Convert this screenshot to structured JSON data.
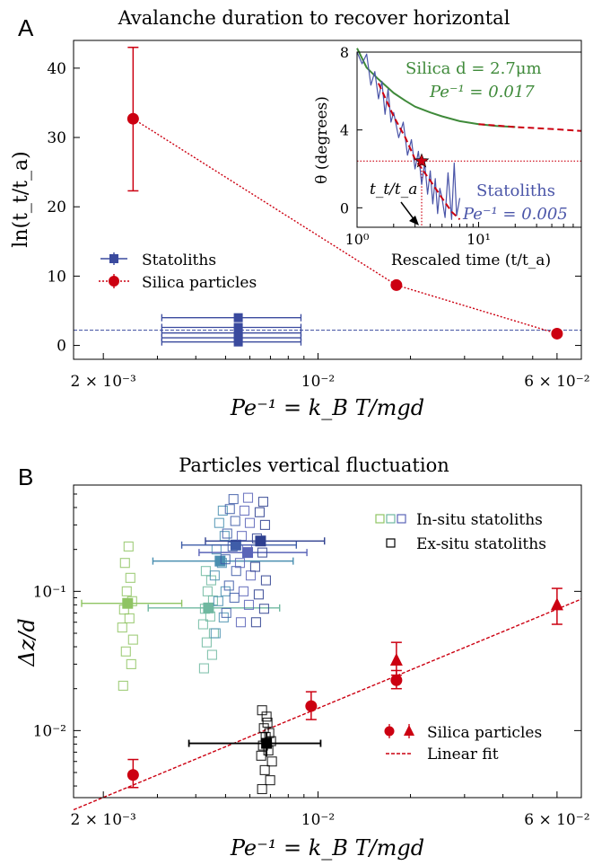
{
  "chart_data": [
    {
      "panel_label": "A",
      "type": "scatter",
      "title": "Avalanche duration to recover horizontal",
      "xlabel": "Pe⁻¹ = k_B T/mgd",
      "ylabel": "ln(t_t/t_a)",
      "x_scale": "log",
      "xlim": [
        0.0016,
        0.072
      ],
      "ylim": [
        -2,
        44
      ],
      "x_tick_labels": [
        "2 × 10⁻³",
        "10⁻²",
        "6 × 10⁻²"
      ],
      "x_ticks": [
        0.002,
        0.01,
        0.06
      ],
      "y_ticks": [
        0,
        10,
        20,
        30,
        40
      ],
      "legend": {
        "placement": "center-left",
        "entries": [
          "Statoliths",
          "Silica particles"
        ]
      },
      "series": [
        {
          "name": "Silica particles",
          "color": "#cc0011",
          "style": "dotted line with circle markers",
          "x": [
            0.0025,
            0.018,
            0.06
          ],
          "y": [
            32.7,
            8.7,
            1.7
          ],
          "y_err_low": [
            22.3,
            null,
            null
          ],
          "y_err_high": [
            43.0,
            null,
            null
          ]
        },
        {
          "name": "Statoliths",
          "color": "#3a4a9e",
          "style": "square markers with horizontal error bars",
          "x": [
            0.0055,
            0.0055,
            0.0055,
            0.0055,
            0.0055
          ],
          "y": [
            4.0,
            2.6,
            1.8,
            1.1,
            0.5
          ],
          "x_err_low": [
            0.0031,
            0.0031,
            0.0031,
            0.0031,
            0.0031
          ],
          "x_err_high": [
            0.0088,
            0.0088,
            0.0088,
            0.0088,
            0.0088
          ]
        },
        {
          "name": "reference",
          "color": "#3a4a9e",
          "style": "dashed horizontal line",
          "y": 2.2
        }
      ]
    },
    {
      "panel_label": "inset",
      "type": "line",
      "xlabel": "Rescaled time (t/t_a)",
      "ylabel": "θ (degrees)",
      "x_scale": "log",
      "xlim": [
        1,
        70
      ],
      "ylim": [
        -1,
        8
      ],
      "x_tick_labels": [
        "10⁰",
        "10¹"
      ],
      "y_ticks": [
        0,
        4,
        8
      ],
      "annotations": [
        {
          "text": "Silica  d = 2.7μm",
          "color": "#3f8a3a"
        },
        {
          "text": "Pe⁻¹ = 0.017",
          "color": "#3f8a3a"
        },
        {
          "text": "Statoliths",
          "color": "#4a55a8"
        },
        {
          "text": "Pe⁻¹ = 0.005",
          "color": "#4a55a8"
        },
        {
          "text": "t_t/t_a",
          "color": "#000000"
        }
      ],
      "series": [
        {
          "name": "Silica",
          "color": "#3f8a3a",
          "x": [
            1.0,
            1.2,
            1.5,
            2.0,
            2.5,
            3.0,
            4.0,
            5.0,
            7.0,
            10.0,
            14.0,
            20.0
          ],
          "y": [
            8.2,
            7.2,
            6.6,
            5.9,
            5.5,
            5.2,
            4.9,
            4.7,
            4.45,
            4.3,
            4.2,
            4.15
          ]
        },
        {
          "name": "Silica fit",
          "color": "#cc0011",
          "style": "dashed",
          "x": [
            10.0,
            20.0,
            40.0,
            70.0
          ],
          "y": [
            4.3,
            4.15,
            4.05,
            3.95
          ]
        },
        {
          "name": "Statoliths",
          "color": "#4a55a8",
          "x": [
            1.0,
            1.1,
            1.2,
            1.3,
            1.4,
            1.5,
            1.6,
            1.7,
            1.8,
            1.9,
            2.0,
            2.2,
            2.4,
            2.6,
            2.8,
            3.0,
            3.2,
            3.4,
            3.6,
            3.8,
            4.0,
            4.2,
            4.4,
            4.6,
            4.8,
            5.0,
            5.3,
            5.6,
            6.0,
            6.3,
            6.6,
            7.0
          ],
          "y": [
            8.0,
            7.4,
            7.9,
            6.3,
            7.0,
            5.6,
            6.5,
            4.8,
            6.1,
            4.4,
            4.9,
            3.6,
            4.4,
            2.7,
            3.5,
            2.0,
            2.9,
            1.2,
            2.3,
            0.7,
            1.9,
            0.2,
            1.5,
            -0.3,
            1.0,
            0.5,
            -0.5,
            1.8,
            -0.6,
            2.3,
            -0.4,
            0.5
          ]
        },
        {
          "name": "Statoliths fit",
          "color": "#cc0011",
          "style": "dashed",
          "x": [
            1.5,
            2.0,
            2.5,
            3.0,
            4.0,
            5.0,
            6.0,
            7.0
          ],
          "y": [
            6.4,
            4.7,
            3.6,
            2.5,
            1.4,
            0.5,
            -0.2,
            -0.6
          ]
        },
        {
          "name": "threshold",
          "color": "#cc0011",
          "style": "dotted horizontal line",
          "y": 2.4
        },
        {
          "name": "t_t/t_a marker",
          "color": "#cc0011",
          "style": "star + dotted vertical line",
          "x": 3.4,
          "y": 2.4
        }
      ]
    },
    {
      "panel_label": "B",
      "type": "scatter",
      "title": "Particles vertical fluctuation",
      "xlabel": "Pe⁻¹ = k_B T/mgd",
      "ylabel": "Δz/d",
      "x_scale": "log",
      "y_scale": "log",
      "xlim": [
        0.0016,
        0.072
      ],
      "ylim": [
        0.0033,
        0.58
      ],
      "x_tick_labels": [
        "2 × 10⁻³",
        "10⁻²",
        "6 × 10⁻²"
      ],
      "x_ticks": [
        0.002,
        0.01,
        0.06
      ],
      "y_tick_labels": [
        "10⁻²",
        "10⁻¹"
      ],
      "y_ticks": [
        0.01,
        0.1
      ],
      "legends": [
        {
          "placement": "top-right",
          "entries": [
            "In-situ statoliths",
            "Ex-situ statoliths"
          ]
        },
        {
          "placement": "lower-right",
          "entries": [
            "Silica particles",
            "Linear fit"
          ]
        }
      ],
      "series": [
        {
          "name": "Silica particles",
          "color": "#cc0011",
          "marker": "circle",
          "x": [
            0.0025,
            0.0095,
            0.018
          ],
          "y": [
            0.0048,
            0.015,
            0.023
          ],
          "y_err_low": [
            0.0039,
            0.012,
            0.02
          ],
          "y_err_high": [
            0.0062,
            0.019,
            0.027
          ]
        },
        {
          "name": "Silica particles",
          "color": "#cc0011",
          "marker": "triangle",
          "x": [
            0.018,
            0.06
          ],
          "y": [
            0.032,
            0.08
          ],
          "y_err_low": [
            0.025,
            0.058
          ],
          "y_err_high": [
            0.043,
            0.105
          ]
        },
        {
          "name": "Linear fit",
          "color": "#cc0011",
          "style": "dashed",
          "x": [
            0.0016,
            0.072
          ],
          "y": [
            0.0027,
            0.088
          ]
        },
        {
          "name": "Ex-situ statoliths",
          "color": "#000000",
          "style": "open squares + mean with error bars",
          "x": [
            0.0068,
            0.0068,
            0.0068,
            0.0068,
            0.0068,
            0.0068,
            0.0068,
            0.0068,
            0.0068,
            0.0068,
            0.0068,
            0.0068,
            0.0068,
            0.0068
          ],
          "y": [
            0.0038,
            0.0044,
            0.0052,
            0.006,
            0.0066,
            0.0072,
            0.0078,
            0.0084,
            0.009,
            0.0096,
            0.0104,
            0.0114,
            0.0126,
            0.014
          ],
          "mean_x": 0.0068,
          "mean_y": 0.0081,
          "x_err_low": 0.0038,
          "x_err_high": 0.0102,
          "y_err_low": 0.0065,
          "y_err_high": 0.0098
        },
        {
          "name": "In-situ statoliths (green)",
          "color": "#8fc463",
          "style": "open squares + mean with error bars",
          "x": [
            0.0024,
            0.0024,
            0.0024,
            0.0024,
            0.0024,
            0.0024,
            0.0024,
            0.0024,
            0.0024,
            0.0024,
            0.0024,
            0.0024
          ],
          "y": [
            0.021,
            0.03,
            0.037,
            0.045,
            0.055,
            0.064,
            0.074,
            0.085,
            0.1,
            0.125,
            0.16,
            0.21
          ],
          "mean_x": 0.0024,
          "mean_y": 0.082,
          "x_err_low": 0.0017,
          "x_err_high": 0.0036
        },
        {
          "name": "In-situ statoliths (teal)",
          "color": "#6fb8a0",
          "style": "open squares + mean with error bars",
          "x": [
            0.0044,
            0.0044,
            0.0044,
            0.0044,
            0.0044,
            0.0044,
            0.0044,
            0.0044,
            0.0044,
            0.0044,
            0.0044
          ],
          "y": [
            0.028,
            0.035,
            0.043,
            0.05,
            0.058,
            0.066,
            0.075,
            0.086,
            0.1,
            0.12,
            0.14
          ],
          "mean_x": 0.0044,
          "mean_y": 0.076,
          "x_err_low": 0.0028,
          "x_err_high": 0.0075
        },
        {
          "name": "In-situ statoliths (blue-teal)",
          "color": "#4a8fb0",
          "style": "open squares + mean with error bars",
          "x": [
            0.0048,
            0.0048,
            0.0048,
            0.0048,
            0.0048,
            0.0048,
            0.0048,
            0.0048,
            0.0048,
            0.0048
          ],
          "y": [
            0.05,
            0.065,
            0.085,
            0.1,
            0.13,
            0.16,
            0.2,
            0.25,
            0.31,
            0.38
          ],
          "mean_x": 0.0048,
          "mean_y": 0.165,
          "x_err_low": 0.0029,
          "x_err_high": 0.0083
        },
        {
          "name": "In-situ statoliths (blue)",
          "color": "#3f5da8",
          "style": "open squares + mean with error bars",
          "x": [
            0.0052,
            0.0052,
            0.0052,
            0.0052,
            0.0052,
            0.0052,
            0.0052,
            0.0052,
            0.0052,
            0.0052
          ],
          "y": [
            0.07,
            0.09,
            0.11,
            0.14,
            0.17,
            0.21,
            0.26,
            0.32,
            0.39,
            0.46
          ],
          "mean_x": 0.0054,
          "mean_y": 0.215,
          "x_err_low": 0.0036,
          "x_err_high": 0.0085
        },
        {
          "name": "In-situ statoliths (violet)",
          "color": "#5a64b8",
          "style": "open squares + mean with error bars",
          "x": [
            0.0058,
            0.0058,
            0.0058,
            0.0058,
            0.0058,
            0.0058,
            0.0058,
            0.0058,
            0.0058,
            0.0058
          ],
          "y": [
            0.06,
            0.08,
            0.1,
            0.13,
            0.16,
            0.2,
            0.25,
            0.31,
            0.38,
            0.47
          ],
          "mean_x": 0.0059,
          "mean_y": 0.19,
          "x_err_low": 0.0041,
          "x_err_high": 0.0092
        },
        {
          "name": "In-situ statoliths (dark blue)",
          "color": "#2e3f8f",
          "style": "open squares + mean with error bars",
          "x": [
            0.0065,
            0.0065,
            0.0065,
            0.0065,
            0.0065,
            0.0065,
            0.0065,
            0.0065,
            0.0065,
            0.0065
          ],
          "y": [
            0.06,
            0.075,
            0.095,
            0.12,
            0.15,
            0.19,
            0.24,
            0.3,
            0.37,
            0.44
          ],
          "mean_x": 0.0065,
          "mean_y": 0.23,
          "x_err_low": 0.0043,
          "x_err_high": 0.0105
        }
      ]
    }
  ]
}
